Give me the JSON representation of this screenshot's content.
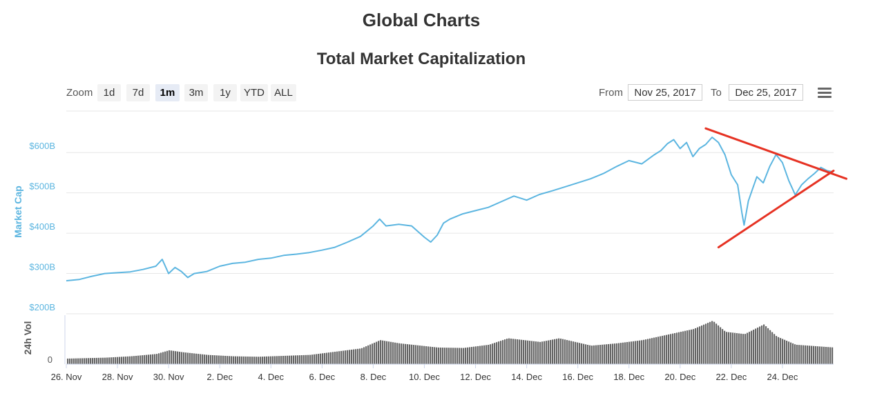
{
  "page": {
    "title": "Global Charts"
  },
  "controls": {
    "zoom_label": "Zoom",
    "zoom_buttons": [
      "1d",
      "7d",
      "1m",
      "3m",
      "1y",
      "YTD",
      "ALL"
    ],
    "active_zoom": "1m",
    "from_label": "From",
    "from_value": "Nov 25, 2017",
    "to_label": "To",
    "to_value": "Dec 25, 2017",
    "menu_icon": "hamburger-menu-icon"
  },
  "chart_data": {
    "type": "line",
    "title": "Total Market Capitalization",
    "ylabel": "Market Cap",
    "volume_label": "24h Vol",
    "volume_tick": "0",
    "y_ticks": [
      "$200B",
      "$300B",
      "$400B",
      "$500B",
      "$600B"
    ],
    "ylim": [
      200,
      650
    ],
    "x_ticks": [
      "26. Nov",
      "28. Nov",
      "30. Nov",
      "2. Dec",
      "4. Dec",
      "6. Dec",
      "8. Dec",
      "10. Dec",
      "12. Dec",
      "14. Dec",
      "16. Dec",
      "18. Dec",
      "20. Dec",
      "22. Dec",
      "24. Dec"
    ],
    "x_range": [
      "2017-11-26",
      "2017-12-26"
    ],
    "series": [
      {
        "name": "Market Cap",
        "color": "#5bb5e0",
        "unit": "billion USD",
        "points": [
          [
            "2017-11-26 00:00",
            282
          ],
          [
            "2017-11-26 12:00",
            285
          ],
          [
            "2017-11-27 00:00",
            293
          ],
          [
            "2017-11-27 12:00",
            300
          ],
          [
            "2017-11-28 00:00",
            302
          ],
          [
            "2017-11-28 12:00",
            304
          ],
          [
            "2017-11-29 00:00",
            310
          ],
          [
            "2017-11-29 12:00",
            318
          ],
          [
            "2017-11-29 18:00",
            335
          ],
          [
            "2017-11-30 00:00",
            300
          ],
          [
            "2017-11-30 06:00",
            315
          ],
          [
            "2017-11-30 12:00",
            305
          ],
          [
            "2017-11-30 18:00",
            290
          ],
          [
            "2017-12-01 00:00",
            300
          ],
          [
            "2017-12-01 12:00",
            305
          ],
          [
            "2017-12-02 00:00",
            318
          ],
          [
            "2017-12-02 12:00",
            325
          ],
          [
            "2017-12-03 00:00",
            328
          ],
          [
            "2017-12-03 12:00",
            335
          ],
          [
            "2017-12-04 00:00",
            338
          ],
          [
            "2017-12-04 12:00",
            345
          ],
          [
            "2017-12-05 00:00",
            348
          ],
          [
            "2017-12-05 12:00",
            352
          ],
          [
            "2017-12-06 00:00",
            358
          ],
          [
            "2017-12-06 12:00",
            365
          ],
          [
            "2017-12-07 00:00",
            378
          ],
          [
            "2017-12-07 12:00",
            392
          ],
          [
            "2017-12-08 00:00",
            418
          ],
          [
            "2017-12-08 06:00",
            435
          ],
          [
            "2017-12-08 12:00",
            418
          ],
          [
            "2017-12-09 00:00",
            422
          ],
          [
            "2017-12-09 12:00",
            418
          ],
          [
            "2017-12-10 00:00",
            390
          ],
          [
            "2017-12-10 06:00",
            378
          ],
          [
            "2017-12-10 12:00",
            395
          ],
          [
            "2017-12-10 18:00",
            425
          ],
          [
            "2017-12-11 00:00",
            435
          ],
          [
            "2017-12-11 12:00",
            448
          ],
          [
            "2017-12-12 00:00",
            456
          ],
          [
            "2017-12-12 12:00",
            464
          ],
          [
            "2017-12-13 00:00",
            478
          ],
          [
            "2017-12-13 12:00",
            492
          ],
          [
            "2017-12-14 00:00",
            482
          ],
          [
            "2017-12-14 12:00",
            496
          ],
          [
            "2017-12-15 00:00",
            505
          ],
          [
            "2017-12-15 12:00",
            515
          ],
          [
            "2017-12-16 00:00",
            525
          ],
          [
            "2017-12-16 12:00",
            535
          ],
          [
            "2017-12-17 00:00",
            548
          ],
          [
            "2017-12-17 12:00",
            565
          ],
          [
            "2017-12-18 00:00",
            580
          ],
          [
            "2017-12-18 12:00",
            572
          ],
          [
            "2017-12-19 00:00",
            595
          ],
          [
            "2017-12-19 06:00",
            605
          ],
          [
            "2017-12-19 12:00",
            622
          ],
          [
            "2017-12-19 18:00",
            632
          ],
          [
            "2017-12-20 00:00",
            610
          ],
          [
            "2017-12-20 06:00",
            625
          ],
          [
            "2017-12-20 12:00",
            590
          ],
          [
            "2017-12-20 18:00",
            610
          ],
          [
            "2017-12-21 00:00",
            620
          ],
          [
            "2017-12-21 06:00",
            638
          ],
          [
            "2017-12-21 12:00",
            625
          ],
          [
            "2017-12-21 18:00",
            595
          ],
          [
            "2017-12-22 00:00",
            545
          ],
          [
            "2017-12-22 06:00",
            520
          ],
          [
            "2017-12-22 10:00",
            450
          ],
          [
            "2017-12-22 12:00",
            420
          ],
          [
            "2017-12-22 16:00",
            480
          ],
          [
            "2017-12-22 20:00",
            510
          ],
          [
            "2017-12-23 00:00",
            540
          ],
          [
            "2017-12-23 06:00",
            525
          ],
          [
            "2017-12-23 12:00",
            565
          ],
          [
            "2017-12-23 18:00",
            595
          ],
          [
            "2017-12-24 00:00",
            575
          ],
          [
            "2017-12-24 06:00",
            530
          ],
          [
            "2017-12-24 12:00",
            495
          ],
          [
            "2017-12-24 18:00",
            520
          ],
          [
            "2017-12-25 00:00",
            535
          ],
          [
            "2017-12-25 06:00",
            548
          ],
          [
            "2017-12-25 12:00",
            563
          ],
          [
            "2017-12-25 18:00",
            555
          ],
          [
            "2017-12-26 00:00",
            552
          ]
        ]
      },
      {
        "name": "24h Vol",
        "color": "#666666",
        "unit": "relative",
        "points": [
          [
            "2017-11-26 00:00",
            0.12
          ],
          [
            "2017-11-27 12:00",
            0.14
          ],
          [
            "2017-11-28 12:00",
            0.17
          ],
          [
            "2017-11-29 12:00",
            0.22
          ],
          [
            "2017-11-30 00:00",
            0.3
          ],
          [
            "2017-11-30 12:00",
            0.26
          ],
          [
            "2017-12-01 12:00",
            0.2
          ],
          [
            "2017-12-02 12:00",
            0.17
          ],
          [
            "2017-12-03 12:00",
            0.16
          ],
          [
            "2017-12-04 12:00",
            0.18
          ],
          [
            "2017-12-05 12:00",
            0.2
          ],
          [
            "2017-12-06 12:00",
            0.27
          ],
          [
            "2017-12-07 12:00",
            0.34
          ],
          [
            "2017-12-08 06:00",
            0.52
          ],
          [
            "2017-12-09 00:00",
            0.45
          ],
          [
            "2017-12-10 12:00",
            0.36
          ],
          [
            "2017-12-11 12:00",
            0.35
          ],
          [
            "2017-12-12 12:00",
            0.42
          ],
          [
            "2017-12-13 06:00",
            0.56
          ],
          [
            "2017-12-14 12:00",
            0.48
          ],
          [
            "2017-12-15 06:00",
            0.56
          ],
          [
            "2017-12-16 12:00",
            0.4
          ],
          [
            "2017-12-17 12:00",
            0.45
          ],
          [
            "2017-12-18 12:00",
            0.52
          ],
          [
            "2017-12-19 12:00",
            0.64
          ],
          [
            "2017-12-20 12:00",
            0.76
          ],
          [
            "2017-12-21 06:00",
            0.94
          ],
          [
            "2017-12-21 18:00",
            0.7
          ],
          [
            "2017-12-22 12:00",
            0.65
          ],
          [
            "2017-12-23 06:00",
            0.86
          ],
          [
            "2017-12-23 18:00",
            0.6
          ],
          [
            "2017-12-24 12:00",
            0.42
          ],
          [
            "2017-12-25 12:00",
            0.38
          ],
          [
            "2017-12-26 00:00",
            0.36
          ]
        ]
      }
    ],
    "annotations": {
      "color": "#e63223",
      "lines": [
        {
          "from": [
            "2017-12-21 00:00",
            660
          ],
          "to": [
            "2017-12-26 12:00",
            535
          ]
        },
        {
          "from": [
            "2017-12-21 12:00",
            365
          ],
          "to": [
            "2017-12-26 00:00",
            555
          ]
        }
      ]
    },
    "grid": true,
    "legend": "none"
  }
}
